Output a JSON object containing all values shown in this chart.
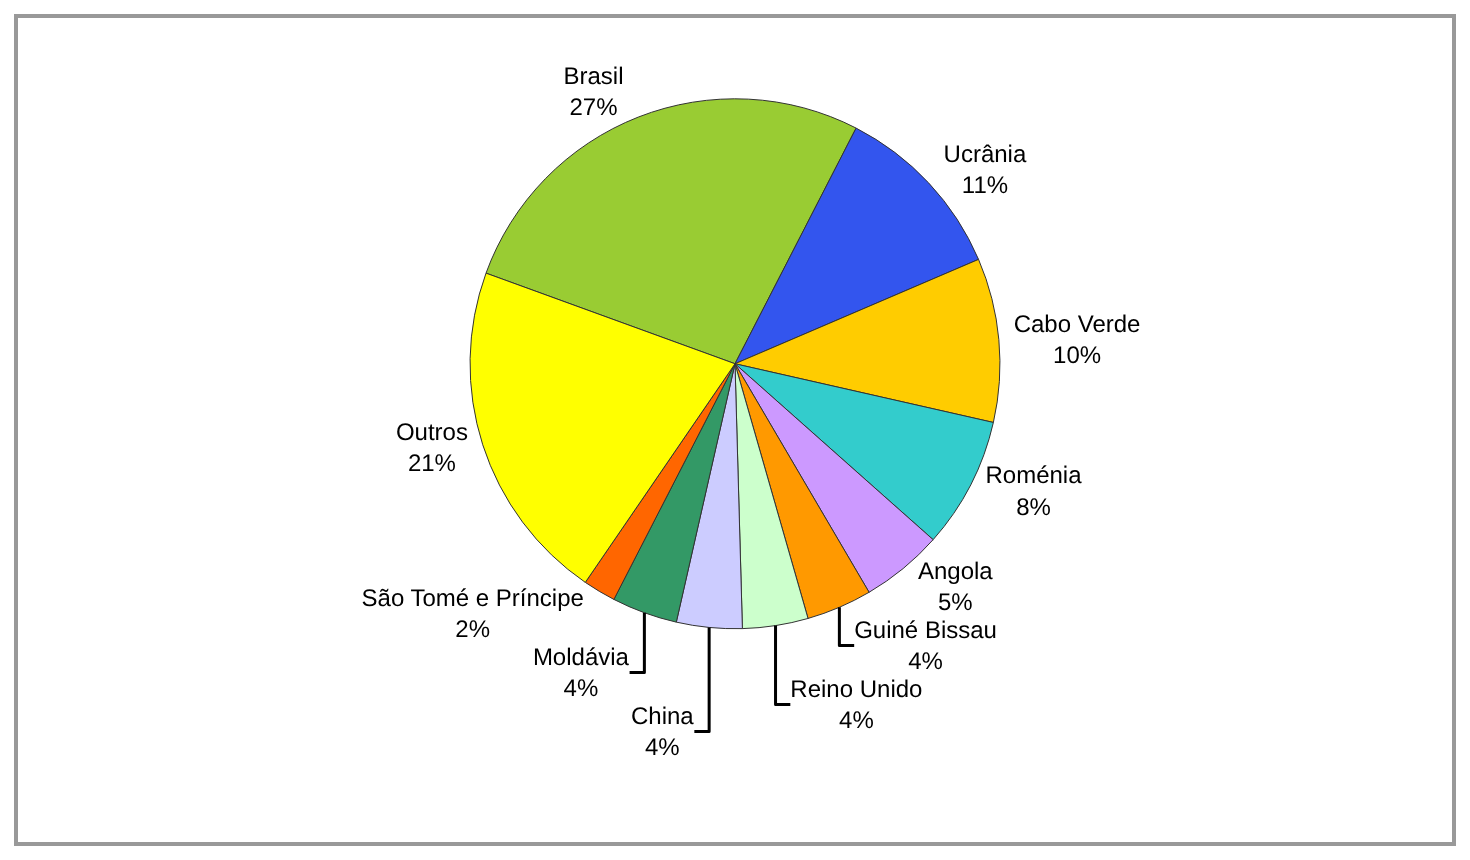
{
  "chart_data": {
    "type": "pie",
    "categories": [
      "Brasil",
      "Ucrânia",
      "Cabo Verde",
      "Roménia",
      "Angola",
      "Guiné Bissau",
      "Reino Unido",
      "China",
      "Moldávia",
      "São Tomé e Príncipe",
      "Outros"
    ],
    "values": [
      27,
      11,
      10,
      8,
      5,
      4,
      4,
      4,
      4,
      2,
      21
    ],
    "value_labels": [
      "27%",
      "11%",
      "10%",
      "8%",
      "5%",
      "4%",
      "4%",
      "4%",
      "4%",
      "2%",
      "21%"
    ],
    "colors": [
      "#99cc33",
      "#3355ee",
      "#ffcc00",
      "#33cccc",
      "#cc99ff",
      "#ff9900",
      "#ccffcc",
      "#ccccff",
      "#339966",
      "#ff6600",
      "#ffff00"
    ],
    "legend": false
  }
}
